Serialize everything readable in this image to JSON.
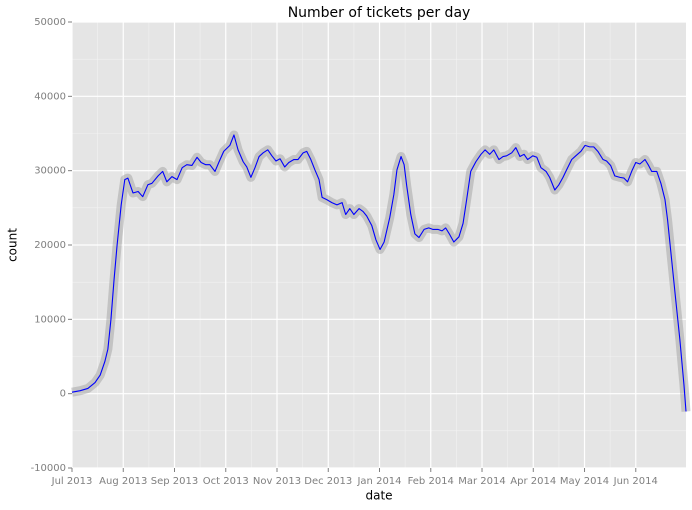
{
  "chart_data": {
    "type": "line",
    "title": "Number of tickets per day",
    "x_label": "date",
    "y_label": "count",
    "x": [
      0,
      0.16,
      0.31,
      0.45,
      0.55,
      0.64,
      0.7,
      0.76,
      0.82,
      0.88,
      0.96,
      1.03,
      1.09,
      1.19,
      1.29,
      1.38,
      1.48,
      1.56,
      1.68,
      1.77,
      1.85,
      1.95,
      2.05,
      2.15,
      2.24,
      2.34,
      2.44,
      2.52,
      2.61,
      2.69,
      2.79,
      2.87,
      2.96,
      3.08,
      3.16,
      3.24,
      3.34,
      3.41,
      3.49,
      3.57,
      3.65,
      3.73,
      3.82,
      3.9,
      3.98,
      4.06,
      4.15,
      4.23,
      4.33,
      4.41,
      4.51,
      4.58,
      4.66,
      4.74,
      4.82,
      4.88,
      4.97,
      5.07,
      5.17,
      5.27,
      5.34,
      5.42,
      5.5,
      5.6,
      5.68,
      5.75,
      5.85,
      5.93,
      6.01,
      6.09,
      6.2,
      6.28,
      6.34,
      6.42,
      6.48,
      6.53,
      6.61,
      6.69,
      6.77,
      6.87,
      6.96,
      7.04,
      7.14,
      7.22,
      7.29,
      7.37,
      7.45,
      7.55,
      7.63,
      7.7,
      7.78,
      7.88,
      7.98,
      8.06,
      8.15,
      8.23,
      8.33,
      8.41,
      8.48,
      8.58,
      8.66,
      8.74,
      8.82,
      8.89,
      8.99,
      9.07,
      9.15,
      9.25,
      9.32,
      9.42,
      9.5,
      9.58,
      9.65,
      9.75,
      9.83,
      9.93,
      10.01,
      10.1,
      10.18,
      10.26,
      10.36,
      10.43,
      10.51,
      10.59,
      10.69,
      10.77,
      10.84,
      10.92,
      11.0,
      11.08,
      11.18,
      11.25,
      11.31,
      11.41,
      11.49,
      11.57,
      11.62,
      11.7,
      11.78,
      11.86,
      11.94,
      11.98
    ],
    "series": [
      {
        "color": "#0000ff",
        "values": [
          200,
          400,
          700,
          1500,
          2500,
          4300,
          6000,
          10000,
          15300,
          20000,
          25400,
          28800,
          29000,
          27000,
          27200,
          26500,
          28100,
          28300,
          29300,
          29900,
          28500,
          29200,
          28800,
          30400,
          30800,
          30700,
          31800,
          31100,
          30800,
          30800,
          29900,
          31200,
          32600,
          33400,
          34800,
          32800,
          31200,
          30500,
          29100,
          30400,
          31900,
          32400,
          32800,
          32000,
          31300,
          31600,
          30500,
          31100,
          31500,
          31500,
          32400,
          32600,
          31500,
          30100,
          28800,
          26400,
          26100,
          25700,
          25400,
          25700,
          24100,
          24900,
          24100,
          24900,
          24500,
          23900,
          22600,
          20700,
          19400,
          20400,
          23700,
          26800,
          30100,
          31900,
          30800,
          28000,
          24100,
          21500,
          21000,
          22100,
          22300,
          22100,
          22100,
          21900,
          22300,
          21400,
          20400,
          21100,
          22900,
          26100,
          29900,
          31200,
          32200,
          32800,
          32200,
          32800,
          31500,
          31900,
          32000,
          32400,
          33100,
          31900,
          32200,
          31500,
          32000,
          31800,
          30400,
          29900,
          29100,
          27400,
          28100,
          29100,
          30100,
          31500,
          32000,
          32600,
          33400,
          33200,
          33200,
          32600,
          31500,
          31300,
          30700,
          29300,
          29100,
          29000,
          28500,
          29900,
          31100,
          30900,
          31500,
          30700,
          29900,
          29900,
          28300,
          26100,
          23400,
          18000,
          12600,
          7300,
          1200,
          -2400
        ]
      }
    ],
    "xlim": [
      0,
      11.98
    ],
    "xticks": [
      {
        "value": 0,
        "label": "Jul 2013"
      },
      {
        "value": 1,
        "label": "Aug 2013"
      },
      {
        "value": 2,
        "label": "Sep 2013"
      },
      {
        "value": 3,
        "label": "Oct 2013"
      },
      {
        "value": 4,
        "label": "Nov 2013"
      },
      {
        "value": 5,
        "label": "Dec 2013"
      },
      {
        "value": 6,
        "label": "Jan 2014"
      },
      {
        "value": 7,
        "label": "Feb 2014"
      },
      {
        "value": 8,
        "label": "Mar 2014"
      },
      {
        "value": 9,
        "label": "Apr 2014"
      },
      {
        "value": 10,
        "label": "May 2014"
      },
      {
        "value": 11,
        "label": "Jun 2014"
      }
    ],
    "ylim": [
      -10000,
      50000
    ],
    "yticks": [
      -10000,
      0,
      10000,
      20000,
      30000,
      40000,
      50000
    ],
    "grid": true
  }
}
